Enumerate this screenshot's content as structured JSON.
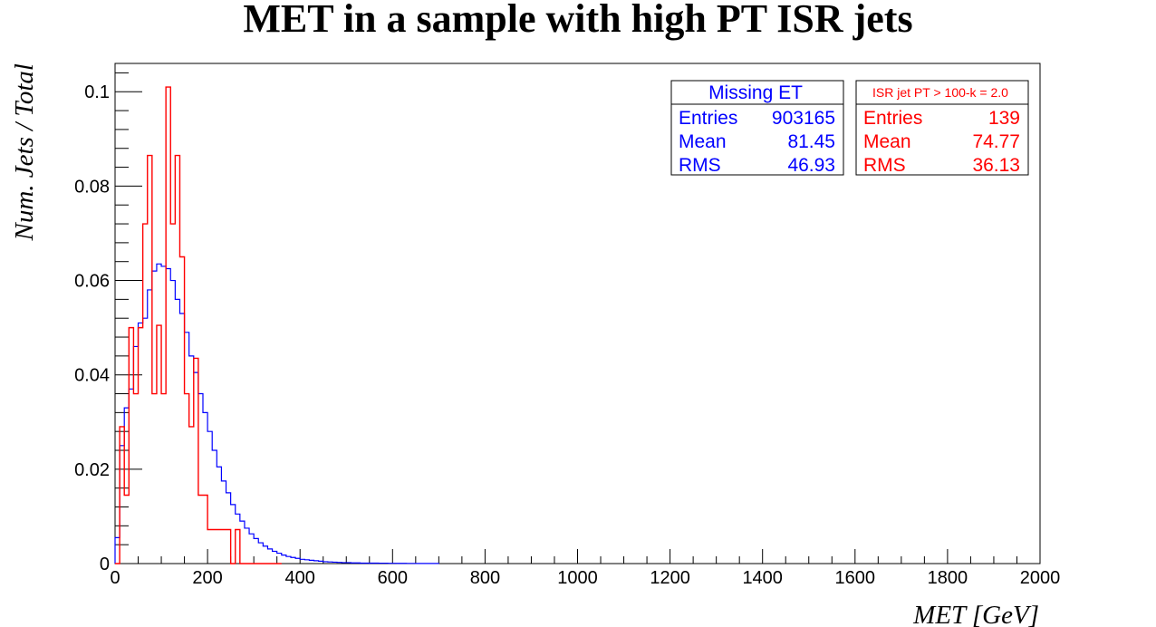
{
  "chart_data": {
    "type": "histogram",
    "title": "MET in a sample with high PT ISR jets",
    "xlabel": "MET [GeV]",
    "ylabel": "Num. Jets / Total",
    "xlim": [
      0,
      2000
    ],
    "ylim": [
      0,
      0.106
    ],
    "x_major_ticks": [
      0,
      200,
      400,
      600,
      800,
      1000,
      1200,
      1400,
      1600,
      1800,
      2000
    ],
    "x_tick_labels": [
      "0",
      "200",
      "400",
      "600",
      "800",
      "1000",
      "1200",
      "1400",
      "1600",
      "1800",
      "2000"
    ],
    "y_major_ticks": [
      0,
      0.02,
      0.04,
      0.06,
      0.08,
      0.1
    ],
    "y_tick_labels": [
      "0",
      "0.02",
      "0.04",
      "0.06",
      "0.08",
      "0.1"
    ],
    "grid": false,
    "bin_width": 10,
    "series": [
      {
        "name": "Missing ET",
        "color": "#0000ff",
        "values": [
          0.0055,
          0.025,
          0.033,
          0.037,
          0.046,
          0.051,
          0.052,
          0.058,
          0.062,
          0.0635,
          0.063,
          0.0625,
          0.06,
          0.056,
          0.053,
          0.049,
          0.044,
          0.0405,
          0.036,
          0.032,
          0.028,
          0.024,
          0.0205,
          0.0175,
          0.015,
          0.0125,
          0.0105,
          0.009,
          0.0075,
          0.0063,
          0.0053,
          0.0044,
          0.0037,
          0.0031,
          0.0026,
          0.0022,
          0.0018,
          0.0015,
          0.0013,
          0.0011,
          0.0009,
          0.0008,
          0.0007,
          0.0006,
          0.0005,
          0.0004,
          0.00035,
          0.0003,
          0.00025,
          0.0002,
          0.0002,
          0.00015,
          0.00015,
          0.0001,
          0.0001,
          0.0001,
          0.0001,
          8e-05,
          8e-05,
          6e-05,
          6e-05,
          5e-05,
          5e-05,
          4e-05,
          4e-05,
          3e-05,
          3e-05,
          2e-05,
          2e-05,
          2e-05
        ]
      },
      {
        "name": "ISR jet PT > 100-k = 2.0",
        "color": "#ff0000",
        "values": [
          0.0,
          0.029,
          0.0145,
          0.05,
          0.036,
          0.05,
          0.072,
          0.0865,
          0.036,
          0.0505,
          0.036,
          0.101,
          0.072,
          0.0865,
          0.065,
          0.036,
          0.029,
          0.0435,
          0.0145,
          0.0145,
          0.0072,
          0.0072,
          0.0072,
          0.0072,
          0.0072,
          0.0,
          0.0072,
          0.0,
          0.0,
          0.0,
          0.0,
          0.0,
          0.0,
          0.0,
          0.0,
          0.0
        ]
      }
    ],
    "stats_boxes": [
      {
        "title": "Missing ET",
        "color": "#0000ff",
        "rows": [
          {
            "label": "Entries",
            "value": "903165"
          },
          {
            "label": "Mean",
            "value": "81.45"
          },
          {
            "label": "RMS",
            "value": "46.93"
          }
        ]
      },
      {
        "title": "ISR jet PT > 100-k = 2.0",
        "color": "#ff0000",
        "rows": [
          {
            "label": "Entries",
            "value": "139"
          },
          {
            "label": "Mean",
            "value": "74.77"
          },
          {
            "label": "RMS",
            "value": "36.13"
          }
        ]
      }
    ]
  }
}
